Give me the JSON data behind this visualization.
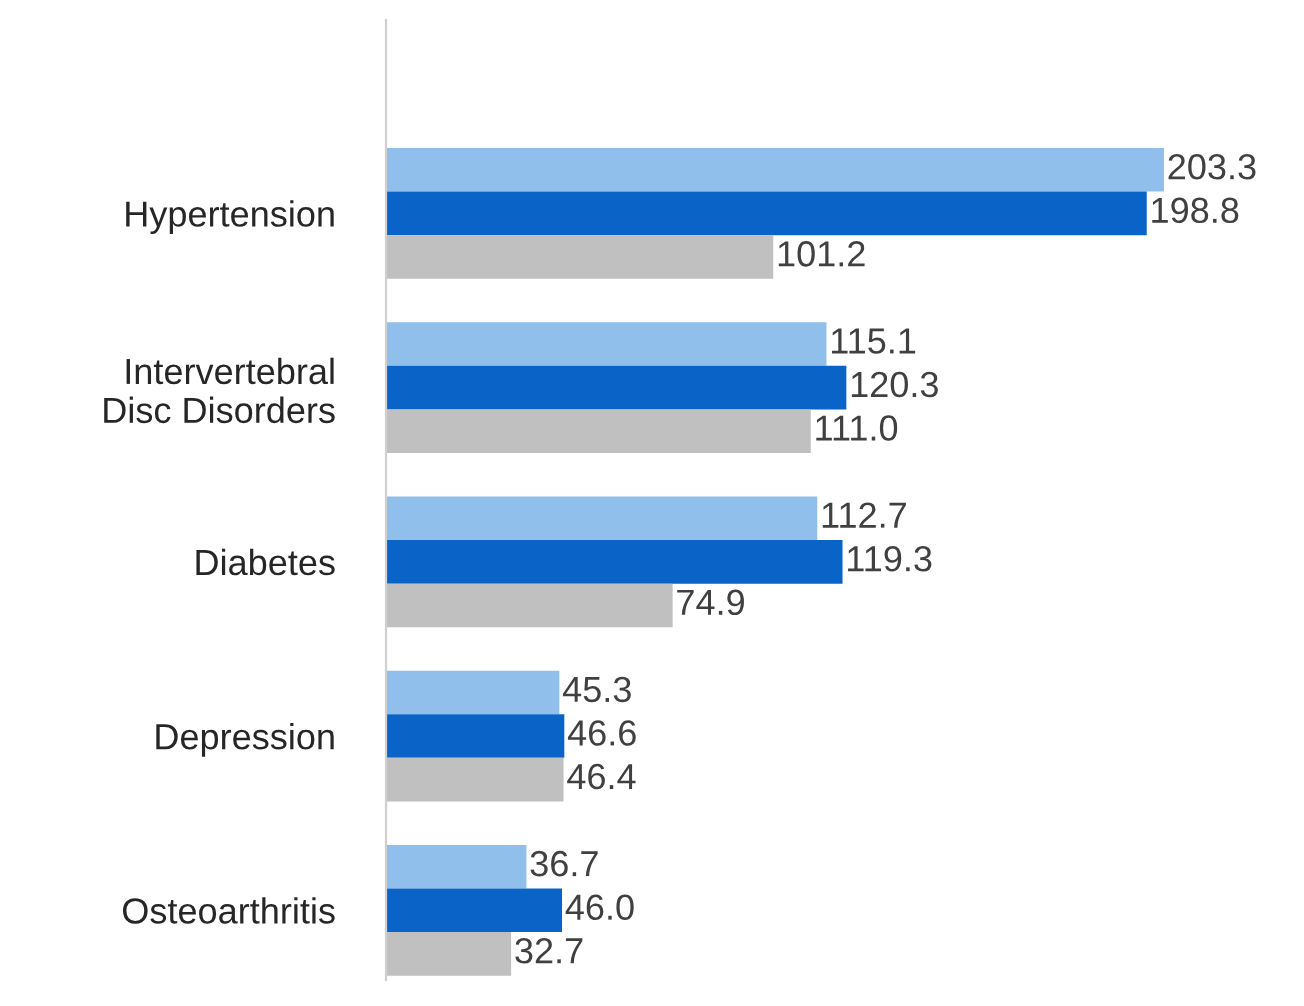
{
  "chart_data": {
    "type": "bar",
    "orientation": "horizontal",
    "categories": [
      "Hypertension",
      "Intervertebral\nDisc Disorders",
      "Diabetes",
      "Depression",
      "Osteoarthritis"
    ],
    "series": [
      {
        "color": "#8fbfea",
        "values": [
          203.3,
          115.1,
          112.7,
          45.3,
          36.7
        ],
        "value_labels": [
          "203.3",
          "115.1",
          "112.7",
          "45.3",
          "36.7"
        ]
      },
      {
        "color": "#0a64c8",
        "values": [
          198.8,
          120.3,
          119.3,
          46.6,
          46
        ],
        "value_labels": [
          "198.8",
          "120.3",
          "119.3",
          "46.6",
          "46.0"
        ]
      },
      {
        "color": "#c0c0c0",
        "values": [
          101.2,
          111,
          74.9,
          46.4,
          32.7
        ],
        "value_labels": [
          "101.2",
          "111.0",
          "74.9",
          "46.4",
          "32.7"
        ]
      }
    ],
    "tick_labels": "y",
    "grid": false,
    "legend": false
  }
}
